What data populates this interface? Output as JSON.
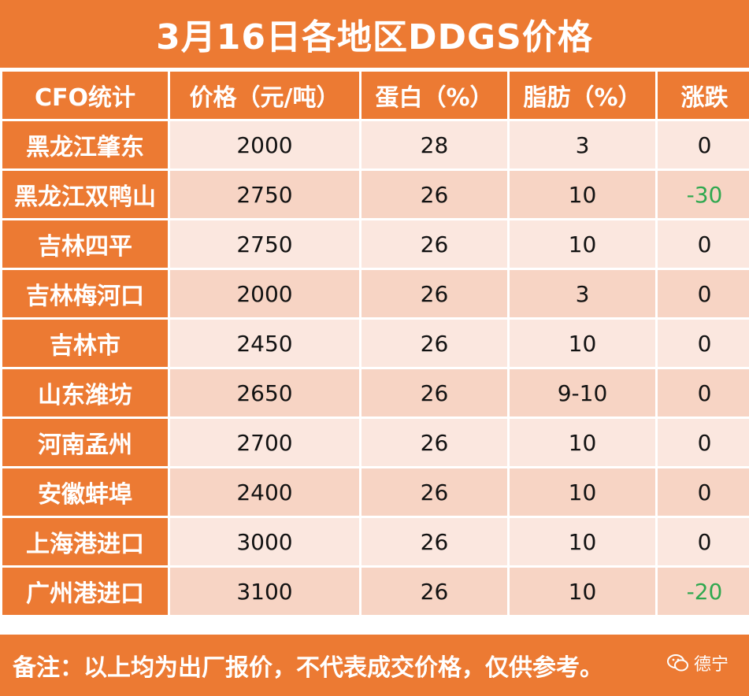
{
  "title": "3月16日各地区DDGS价格",
  "headers": [
    "CFO统计",
    "价格（元/吨）",
    "蛋白（%）",
    "脂肪（%）",
    "涨跌"
  ],
  "rows": [
    {
      "region": "黑龙江肇东",
      "price": "2000",
      "protein": "28",
      "fat": "3",
      "change": "0"
    },
    {
      "region": "黑龙江双鸭山",
      "price": "2750",
      "protein": "26",
      "fat": "10",
      "change": "-30"
    },
    {
      "region": "吉林四平",
      "price": "2750",
      "protein": "26",
      "fat": "10",
      "change": "0"
    },
    {
      "region": "吉林梅河口",
      "price": "2000",
      "protein": "26",
      "fat": "3",
      "change": "0"
    },
    {
      "region": "吉林市",
      "price": "2450",
      "protein": "26",
      "fat": "10",
      "change": "0"
    },
    {
      "region": "山东潍坊",
      "price": "2650",
      "protein": "26",
      "fat": "9-10",
      "change": "0"
    },
    {
      "region": "河南孟州",
      "price": "2700",
      "protein": "26",
      "fat": "10",
      "change": "0"
    },
    {
      "region": "安徽蚌埠",
      "price": "2400",
      "protein": "26",
      "fat": "10",
      "change": "0"
    },
    {
      "region": "上海港进口",
      "price": "3000",
      "protein": "26",
      "fat": "10",
      "change": "0"
    },
    {
      "region": "广州港进口",
      "price": "3100",
      "protein": "26",
      "fat": "10",
      "change": "-20"
    }
  ],
  "footer": "备注：以上均为出厂报价，不代表成交价格，仅供参考。",
  "brand": {
    "icon": "wechat-icon",
    "name": "德宁"
  },
  "colors": {
    "accent": "#ec7a33",
    "row_light": "#fbe7df",
    "row_dark": "#f7d4c4",
    "negative": "#2fa84f"
  }
}
